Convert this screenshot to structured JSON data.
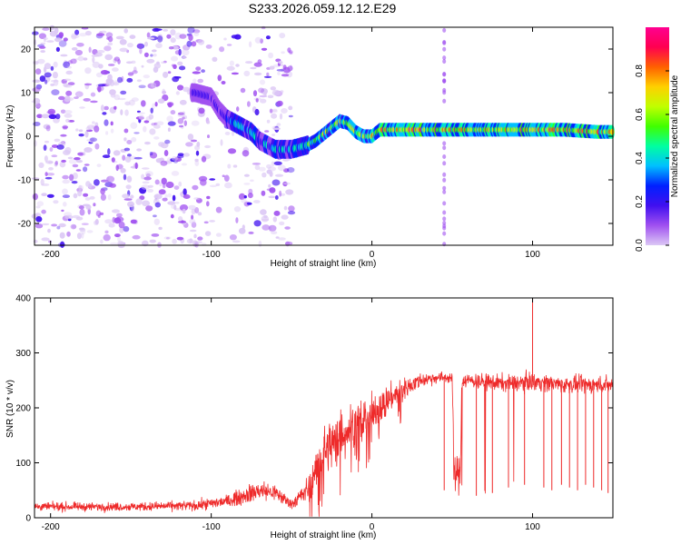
{
  "title": "S233.2026.059.12.12.E29",
  "chart_data": [
    {
      "type": "heatmap",
      "name": "spectrogram",
      "xlabel": "Height of straight line (km)",
      "ylabel": "Frequency (Hz)",
      "xlim": [
        -210,
        150
      ],
      "ylim": [
        -25,
        25
      ],
      "xticks": [
        "-200",
        "-100",
        "0",
        "100"
      ],
      "xtick_values": [
        -200,
        -100,
        0,
        100
      ],
      "yticks": [
        "-20",
        "-10",
        "0",
        "10",
        "20"
      ],
      "ytick_values": [
        -20,
        -10,
        0,
        10,
        20
      ],
      "ridge_x": [
        -110,
        -100,
        -95,
        -90,
        -85,
        -80,
        -75,
        -70,
        -65,
        -60,
        -55,
        -50,
        -45,
        -40,
        -35,
        -30,
        -25,
        -20,
        -15,
        -10,
        -5,
        0,
        5,
        10,
        20,
        40,
        60,
        80,
        100,
        120,
        140,
        150
      ],
      "ridge_y": [
        10,
        9,
        6,
        4,
        3,
        2,
        1,
        -1,
        -2,
        -3,
        -3,
        -3,
        -2.5,
        -2,
        -1,
        0.5,
        2,
        3.5,
        3,
        1,
        0,
        0,
        1.5,
        1.5,
        1.5,
        1.5,
        1.5,
        1.5,
        1.5,
        1.5,
        1,
        1
      ],
      "colorbar": {
        "label": "Normalized spectral amplitude",
        "range": [
          0,
          1
        ],
        "ticks": [
          "0.0",
          "0.2",
          "0.4",
          "0.6",
          "0.8"
        ],
        "tick_values": [
          0,
          0.2,
          0.4,
          0.6,
          0.8
        ],
        "colors": [
          "#dcc8f5",
          "#a050f0",
          "#4010f0",
          "#0020ff",
          "#00c0ff",
          "#00ffa0",
          "#40ff00",
          "#c0ff00",
          "#ffd000",
          "#ff6000",
          "#ff0050",
          "#ff0090"
        ]
      }
    },
    {
      "type": "line",
      "name": "snr",
      "xlabel": "Height of straight line (km)",
      "ylabel": "SNR (10 * v/v)",
      "xlim": [
        -210,
        150
      ],
      "ylim": [
        0,
        400
      ],
      "xticks": [
        "-200",
        "-100",
        "0",
        "100"
      ],
      "xtick_values": [
        -200,
        -100,
        0,
        100
      ],
      "yticks": [
        "0",
        "100",
        "200",
        "300",
        "400"
      ],
      "ytick_values": [
        0,
        100,
        200,
        300,
        400
      ],
      "color": "#ee2a2a",
      "envelope_x": [
        -210,
        -150,
        -110,
        -90,
        -80,
        -70,
        -60,
        -50,
        -40,
        -30,
        -20,
        -10,
        0,
        10,
        20,
        30,
        40,
        50,
        51,
        55,
        56,
        60,
        80,
        90,
        100,
        110,
        120,
        130,
        140,
        150
      ],
      "envelope_mean": [
        20,
        20,
        22,
        30,
        40,
        50,
        45,
        25,
        50,
        120,
        150,
        170,
        190,
        215,
        235,
        250,
        255,
        255,
        80,
        80,
        250,
        250,
        245,
        245,
        248,
        245,
        242,
        242,
        242,
        242
      ],
      "envelope_spread": [
        10,
        10,
        12,
        15,
        20,
        25,
        20,
        12,
        30,
        60,
        60,
        55,
        45,
        35,
        25,
        18,
        15,
        12,
        45,
        45,
        18,
        18,
        20,
        20,
        22,
        20,
        20,
        20,
        20,
        20
      ],
      "spikes_x": [
        45,
        65,
        75,
        85,
        95,
        100,
        107,
        112,
        118,
        123,
        128,
        133,
        138,
        143,
        147
      ],
      "spikes_y": [
        50,
        40,
        45,
        55,
        60,
        400,
        55,
        50,
        60,
        55,
        50,
        60,
        55,
        50,
        45
      ]
    }
  ]
}
